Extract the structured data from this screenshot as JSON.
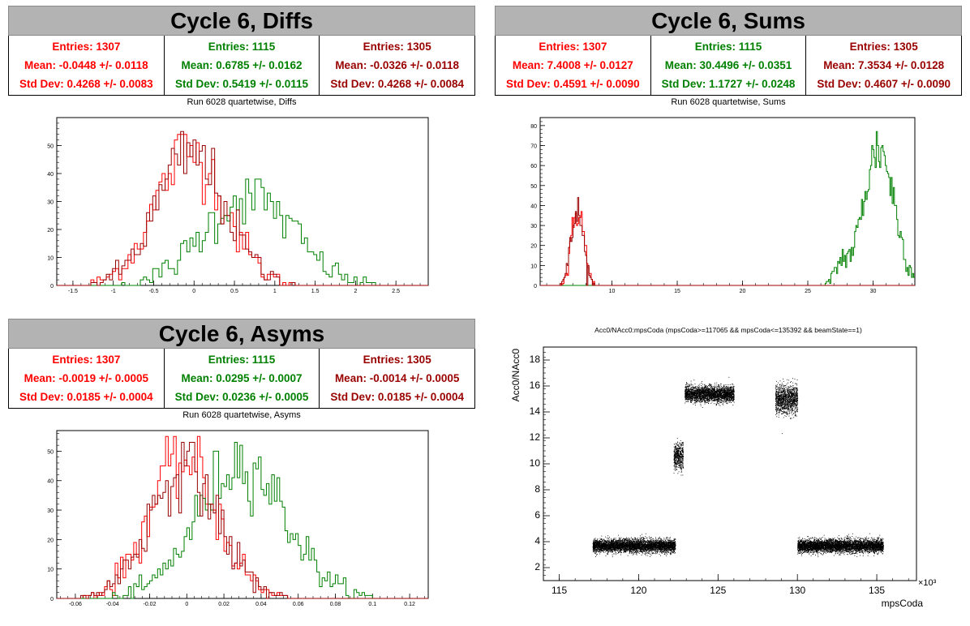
{
  "colors": {
    "red": "#ff0000",
    "green": "#008000",
    "darkred": "#990000",
    "title_bg": "#b3b3b3"
  },
  "panels": {
    "diffs": {
      "title": "Cycle 6, Diffs",
      "subtitle": "Run 6028 quartetwise, Diffs",
      "stats": [
        {
          "entries": "Entries: 1307",
          "mean": "Mean: -0.0448 +/- 0.0118",
          "stddev": "Std Dev: 0.4268 +/- 0.0083",
          "color": "red"
        },
        {
          "entries": "Entries: 1115",
          "mean": "Mean: 0.6785 +/- 0.0162",
          "stddev": "Std Dev: 0.5419 +/- 0.0115",
          "color": "green"
        },
        {
          "entries": "Entries: 1305",
          "mean": "Mean: -0.0326 +/- 0.0118",
          "stddev": "Std Dev: 0.4268 +/- 0.0084",
          "color": "darkred"
        }
      ]
    },
    "sums": {
      "title": "Cycle 6, Sums",
      "subtitle": "Run 6028 quartetwise, Sums",
      "stats": [
        {
          "entries": "Entries: 1307",
          "mean": "Mean: 7.4008 +/- 0.0127",
          "stddev": "Std Dev: 0.4591 +/- 0.0090",
          "color": "red"
        },
        {
          "entries": "Entries: 1115",
          "mean": "Mean: 30.4496 +/- 0.0351",
          "stddev": "Std Dev: 1.1727 +/- 0.0248",
          "color": "green"
        },
        {
          "entries": "Entries: 1305",
          "mean": "Mean: 7.3534 +/- 0.0128",
          "stddev": "Std Dev: 0.4607 +/- 0.0090",
          "color": "darkred"
        }
      ]
    },
    "asyms": {
      "title": "Cycle 6, Asyms",
      "subtitle": "Run 6028 quartetwise, Asyms",
      "stats": [
        {
          "entries": "Entries: 1307",
          "mean": "Mean: -0.0019 +/- 0.0005",
          "stddev": "Std Dev: 0.0185 +/- 0.0004",
          "color": "red"
        },
        {
          "entries": "Entries: 1115",
          "mean": "Mean: 0.0295 +/- 0.0007",
          "stddev": "Std Dev: 0.0236 +/- 0.0005",
          "color": "green"
        },
        {
          "entries": "Entries: 1305",
          "mean": "Mean: -0.0014 +/- 0.0005",
          "stddev": "Std Dev: 0.0185 +/- 0.0004",
          "color": "darkred"
        }
      ]
    },
    "scatter": {
      "title": "Acc0/NAcc0:mpsCoda (mpsCoda>=117065 && mpsCoda<=135392 && beamState==1)"
    }
  },
  "chart_data": [
    {
      "type": "histogram",
      "name": "diffs",
      "xlim": [
        -1.7,
        2.9
      ],
      "ylim": [
        0,
        60
      ],
      "xticks": [
        -1.5,
        -1,
        -0.5,
        0,
        0.5,
        1,
        1.5,
        2,
        2.5
      ],
      "xtick_labels": [
        "-1.5",
        "-1",
        "-0.5",
        "0",
        "0.5",
        "1",
        "1.5",
        "2",
        "2.5"
      ],
      "yticks": [
        0,
        10,
        20,
        30,
        40,
        50
      ],
      "series": [
        {
          "color": "red",
          "mean": -0.0448,
          "std": 0.4268,
          "peak": 57
        },
        {
          "color": "green",
          "mean": 0.6785,
          "std": 0.5419,
          "peak": 38
        },
        {
          "color": "darkred",
          "mean": -0.0326,
          "std": 0.4268,
          "peak": 55
        }
      ]
    },
    {
      "type": "histogram",
      "name": "sums",
      "xlim": [
        4.5,
        33.2
      ],
      "ylim": [
        0,
        84
      ],
      "xticks": [
        10,
        15,
        20,
        25,
        30
      ],
      "xtick_labels": [
        "10",
        "15",
        "20",
        "25",
        "30"
      ],
      "yticks": [
        0,
        10,
        20,
        30,
        40,
        50,
        60,
        70,
        80
      ],
      "series": [
        {
          "color": "red",
          "mean": 7.4008,
          "std": 0.4591,
          "peak": 46
        },
        {
          "color": "green",
          "mean": 30.4496,
          "std": 1.1727,
          "peak": 81
        },
        {
          "color": "darkred",
          "mean": 7.3534,
          "std": 0.4607,
          "peak": 44
        }
      ]
    },
    {
      "type": "histogram",
      "name": "asyms",
      "xlim": [
        -0.07,
        0.13
      ],
      "ylim": [
        0,
        57
      ],
      "xticks": [
        -0.06,
        -0.04,
        -0.02,
        0,
        0.02,
        0.04,
        0.06,
        0.08,
        0.1,
        0.12
      ],
      "xtick_labels": [
        "-0.06",
        "-0.04",
        "-0.02",
        "0",
        "0.02",
        "0.04",
        "0.06",
        "0.08",
        "0.1",
        "0.12"
      ],
      "yticks": [
        0,
        10,
        20,
        30,
        40,
        50
      ],
      "series": [
        {
          "color": "red",
          "mean": -0.0019,
          "std": 0.0185,
          "peak": 55
        },
        {
          "color": "green",
          "mean": 0.0295,
          "std": 0.0236,
          "peak": 55
        },
        {
          "color": "darkred",
          "mean": -0.0014,
          "std": 0.0185,
          "peak": 53
        }
      ]
    },
    {
      "type": "scatter",
      "name": "scatter",
      "xlabel": "mpsCoda",
      "ylabel": "Acc0/NAcc0",
      "x_multiplier": "×10³",
      "xlim": [
        114,
        137.5
      ],
      "ylim": [
        1,
        19
      ],
      "xticks": [
        115,
        120,
        125,
        130,
        135
      ],
      "xtick_labels": [
        "115",
        "120",
        "125",
        "130",
        "135"
      ],
      "yticks": [
        2,
        4,
        6,
        8,
        10,
        12,
        14,
        16,
        18
      ],
      "ytick_labels": [
        "2",
        "4",
        "6",
        "8",
        "10",
        "12",
        "14",
        "16",
        "18"
      ],
      "clusters": [
        {
          "x": [
            117.1,
            122.3
          ],
          "y_center": 3.7,
          "y_spread": 0.45
        },
        {
          "x": [
            122.2,
            122.8
          ],
          "y_center": 10.6,
          "y_spread": 0.9
        },
        {
          "x": [
            122.9,
            126.0
          ],
          "y_center": 15.4,
          "y_spread": 0.55
        },
        {
          "x": [
            128.6,
            130.0
          ],
          "y_center": 15.0,
          "y_spread": 1.0
        },
        {
          "x": [
            130.0,
            135.4
          ],
          "y_center": 3.7,
          "y_spread": 0.45
        }
      ]
    }
  ]
}
